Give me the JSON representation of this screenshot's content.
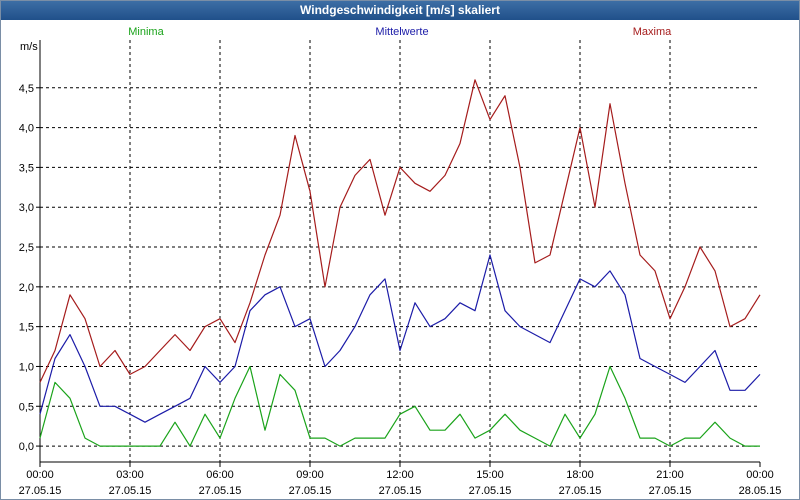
{
  "window": {
    "title": "Windgeschwindigkeit [m/s] skaliert"
  },
  "colors": {
    "min": "#1aa31a",
    "mean": "#1c1ca8",
    "max": "#a51c1c",
    "grid": "#000000",
    "title_bg": "#2a5a94"
  },
  "chart_data": {
    "type": "line",
    "title": "Windgeschwindigkeit [m/s] skaliert",
    "ylabel": "m/s",
    "xlabel": "",
    "ylim": [
      -0.2,
      5.1
    ],
    "xlim": [
      0,
      24
    ],
    "grid": true,
    "yticks": [
      0.0,
      0.5,
      1.0,
      1.5,
      2.0,
      2.5,
      3.0,
      3.5,
      4.0,
      4.5
    ],
    "ytick_labels": [
      "0,0",
      "0,5",
      "1,0",
      "1,5",
      "2,0",
      "2,5",
      "3,0",
      "3,5",
      "4,0",
      "4,5"
    ],
    "xticks": [
      0,
      3,
      6,
      9,
      12,
      15,
      18,
      21,
      24
    ],
    "xtick_labels": [
      {
        "time": "00:00",
        "date": "27.05.15"
      },
      {
        "time": "03:00",
        "date": "27.05.15"
      },
      {
        "time": "06:00",
        "date": "27.05.15"
      },
      {
        "time": "09:00",
        "date": "27.05.15"
      },
      {
        "time": "12:00",
        "date": "27.05.15"
      },
      {
        "time": "15:00",
        "date": "27.05.15"
      },
      {
        "time": "18:00",
        "date": "27.05.15"
      },
      {
        "time": "21:00",
        "date": "27.05.15"
      },
      {
        "time": "00:00",
        "date": "28.05.15"
      }
    ],
    "legend": [
      "Minima",
      "Mittelwerte",
      "Maxima"
    ],
    "x": [
      0.0,
      0.5,
      1.0,
      1.5,
      2.0,
      2.5,
      3.0,
      3.5,
      4.0,
      4.5,
      5.0,
      5.5,
      6.0,
      6.5,
      7.0,
      7.5,
      8.0,
      8.5,
      9.0,
      9.5,
      10.0,
      10.5,
      11.0,
      11.5,
      12.0,
      12.5,
      13.0,
      13.5,
      14.0,
      14.5,
      15.0,
      15.5,
      16.0,
      16.5,
      17.0,
      17.5,
      18.0,
      18.5,
      19.0,
      19.5,
      20.0,
      20.5,
      21.0,
      21.5,
      22.0,
      22.5,
      23.0,
      23.5,
      24.0
    ],
    "series": [
      {
        "name": "Minima",
        "values": [
          0.1,
          0.8,
          0.6,
          0.1,
          0.0,
          0.0,
          0.0,
          0.0,
          0.0,
          0.3,
          0.0,
          0.4,
          0.1,
          0.6,
          1.0,
          0.2,
          0.9,
          0.7,
          0.1,
          0.1,
          0.0,
          0.1,
          0.1,
          0.1,
          0.4,
          0.5,
          0.2,
          0.2,
          0.4,
          0.1,
          0.2,
          0.4,
          0.2,
          0.1,
          0.0,
          0.4,
          0.1,
          0.4,
          1.0,
          0.6,
          0.1,
          0.1,
          0.0,
          0.1,
          0.1,
          0.3,
          0.1,
          0.0,
          0.0
        ]
      },
      {
        "name": "Mittelwerte",
        "values": [
          0.4,
          1.1,
          1.4,
          1.0,
          0.5,
          0.5,
          0.4,
          0.3,
          0.4,
          0.5,
          0.6,
          1.0,
          0.8,
          1.0,
          1.7,
          1.9,
          2.0,
          1.5,
          1.6,
          1.0,
          1.2,
          1.5,
          1.9,
          2.1,
          1.2,
          1.8,
          1.5,
          1.6,
          1.8,
          1.7,
          2.4,
          1.7,
          1.5,
          1.4,
          1.3,
          1.7,
          2.1,
          2.0,
          2.2,
          1.9,
          1.1,
          1.0,
          0.9,
          0.8,
          1.0,
          1.2,
          0.7,
          0.7,
          0.9
        ]
      },
      {
        "name": "Maxima",
        "values": [
          0.8,
          1.2,
          1.9,
          1.6,
          1.0,
          1.2,
          0.9,
          1.0,
          1.2,
          1.4,
          1.2,
          1.5,
          1.6,
          1.3,
          1.8,
          2.4,
          2.9,
          3.9,
          3.2,
          2.0,
          3.0,
          3.4,
          3.6,
          2.9,
          3.5,
          3.3,
          3.2,
          3.4,
          3.8,
          4.6,
          4.1,
          4.4,
          3.5,
          2.3,
          2.4,
          3.2,
          4.0,
          3.0,
          4.3,
          3.3,
          2.4,
          2.2,
          1.6,
          2.0,
          2.5,
          2.2,
          1.5,
          1.6,
          1.9
        ]
      }
    ]
  }
}
